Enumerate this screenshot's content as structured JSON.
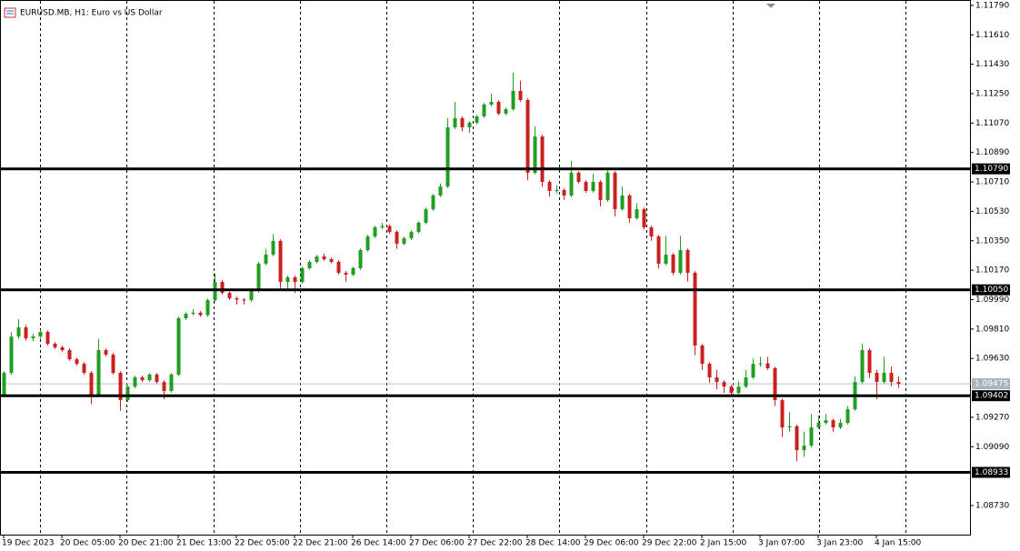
{
  "chart_data": {
    "type": "candlestick",
    "title": "EURUSD.MB, H1:  Euro vs US Dollar",
    "up_color": "#1f9e1f",
    "down_color": "#cc1f1f",
    "ylim": [
      1.08552,
      1.11823
    ],
    "yticks": [
      {
        "value": 1.1179,
        "label": "1.11790"
      },
      {
        "value": 1.1161,
        "label": "1.11610"
      },
      {
        "value": 1.1143,
        "label": "1.11430"
      },
      {
        "value": 1.1125,
        "label": "1.11250"
      },
      {
        "value": 1.1107,
        "label": "1.11070"
      },
      {
        "value": 1.1089,
        "label": "1.10890"
      },
      {
        "value": 1.1071,
        "label": "1.10710"
      },
      {
        "value": 1.1053,
        "label": "1.10530"
      },
      {
        "value": 1.1035,
        "label": "1.10350"
      },
      {
        "value": 1.1017,
        "label": "1.10170"
      },
      {
        "value": 1.0999,
        "label": "1.09990"
      },
      {
        "value": 1.0981,
        "label": "1.09810"
      },
      {
        "value": 1.0963,
        "label": "1.09630"
      },
      {
        "value": 1.0927,
        "label": "1.09270"
      },
      {
        "value": 1.0909,
        "label": "1.09090"
      },
      {
        "value": 1.0873,
        "label": "1.08730"
      }
    ],
    "x_labels": [
      "19 Dec 2023",
      "20 Dec 05:00",
      "20 Dec 21:00",
      "21 Dec 13:00",
      "22 Dec 05:00",
      "22 Dec 21:00",
      "26 Dec 14:00",
      "27 Dec 06:00",
      "27 Dec 22:00",
      "28 Dec 14:00",
      "29 Dec 06:00",
      "29 Dec 22:00",
      "2 Jan 15:00",
      "3 Jan 07:00",
      "3 Jan 23:00",
      "4 Jan 15:00"
    ],
    "levels": [
      {
        "value": 1.1079,
        "label": "1.10790"
      },
      {
        "value": 1.1005,
        "label": "1.10050"
      },
      {
        "value": 1.09402,
        "label": "1.09402"
      },
      {
        "value": 1.08933,
        "label": "1.08933"
      }
    ],
    "bid": {
      "value": 1.09475,
      "label": "1.09475"
    },
    "ohlc": [
      [
        1.09403,
        1.09552,
        1.09393,
        1.09542
      ],
      [
        1.09542,
        1.0979,
        1.0953,
        1.09764
      ],
      [
        1.09764,
        1.0987,
        1.0975,
        1.0982
      ],
      [
        1.0982,
        1.09835,
        1.0974,
        1.09753
      ],
      [
        1.09753,
        1.0978,
        1.09735,
        1.09764
      ],
      [
        1.09764,
        1.09805,
        1.0975,
        1.09792
      ],
      [
        1.09792,
        1.09802,
        1.0971,
        1.0972
      ],
      [
        1.0972,
        1.0973,
        1.09688,
        1.09698
      ],
      [
        1.09698,
        1.09708,
        1.09671,
        1.09681
      ],
      [
        1.09681,
        1.09691,
        1.09615,
        1.09625
      ],
      [
        1.09625,
        1.09635,
        1.09587,
        1.09597
      ],
      [
        1.09597,
        1.09607,
        1.09532,
        1.09542
      ],
      [
        1.09542,
        1.09552,
        1.0935,
        1.09403
      ],
      [
        1.09403,
        1.0975,
        1.09393,
        1.09681
      ],
      [
        1.09681,
        1.09691,
        1.09643,
        1.09653
      ],
      [
        1.09653,
        1.09663,
        1.09532,
        1.09542
      ],
      [
        1.09542,
        1.09552,
        1.0931,
        1.09375
      ],
      [
        1.09375,
        1.09468,
        1.09365,
        1.09458
      ],
      [
        1.09458,
        1.09524,
        1.09448,
        1.09514
      ],
      [
        1.09514,
        1.09524,
        1.09487,
        1.09497
      ],
      [
        1.09497,
        1.09541,
        1.09487,
        1.09531
      ],
      [
        1.09531,
        1.09541,
        1.09476,
        1.09486
      ],
      [
        1.09486,
        1.09496,
        1.0938,
        1.09431
      ],
      [
        1.09431,
        1.09541,
        1.09421,
        1.09531
      ],
      [
        1.09531,
        1.09886,
        1.09521,
        1.09876
      ],
      [
        1.09876,
        1.09913,
        1.09866,
        1.09903
      ],
      [
        1.09903,
        1.0993,
        1.09893,
        1.0991
      ],
      [
        1.0991,
        1.0992,
        1.09885,
        1.09895
      ],
      [
        1.09895,
        1.09997,
        1.09885,
        1.09987
      ],
      [
        1.09987,
        1.1015,
        1.09977,
        1.10098
      ],
      [
        1.10098,
        1.10108,
        1.10021,
        1.10031
      ],
      [
        1.10031,
        1.10041,
        1.09988,
        1.09998
      ],
      [
        1.09998,
        1.10008,
        1.0996,
        1.0999
      ],
      [
        1.0999,
        1.1,
        1.0996,
        1.09987
      ],
      [
        1.09987,
        1.10053,
        1.09977,
        1.10043
      ],
      [
        1.10043,
        1.1022,
        1.10033,
        1.1021
      ],
      [
        1.1021,
        1.103,
        1.102,
        1.10265
      ],
      [
        1.10265,
        1.1039,
        1.10255,
        1.10349
      ],
      [
        1.10349,
        1.10359,
        1.1006,
        1.10098
      ],
      [
        1.10098,
        1.10136,
        1.1004,
        1.10126
      ],
      [
        1.10126,
        1.10136,
        1.1003,
        1.10098
      ],
      [
        1.10098,
        1.10192,
        1.10088,
        1.10182
      ],
      [
        1.10182,
        1.10231,
        1.10172,
        1.10221
      ],
      [
        1.10221,
        1.10264,
        1.10211,
        1.10254
      ],
      [
        1.10254,
        1.1027,
        1.10227,
        1.10237
      ],
      [
        1.10237,
        1.10247,
        1.10211,
        1.10221
      ],
      [
        1.10221,
        1.10231,
        1.10144,
        1.10154
      ],
      [
        1.10154,
        1.10164,
        1.101,
        1.10143
      ],
      [
        1.10143,
        1.10192,
        1.10133,
        1.10182
      ],
      [
        1.10182,
        1.10303,
        1.10172,
        1.10293
      ],
      [
        1.10293,
        1.10386,
        1.10283,
        1.10376
      ],
      [
        1.10376,
        1.10442,
        1.10366,
        1.10432
      ],
      [
        1.10432,
        1.1046,
        1.10422,
        1.1044
      ],
      [
        1.1044,
        1.1045,
        1.10394,
        1.10404
      ],
      [
        1.10404,
        1.10414,
        1.103,
        1.10332
      ],
      [
        1.10332,
        1.10375,
        1.10322,
        1.10365
      ],
      [
        1.10365,
        1.10414,
        1.10355,
        1.10404
      ],
      [
        1.10404,
        1.1047,
        1.10394,
        1.1046
      ],
      [
        1.1046,
        1.10553,
        1.1045,
        1.10543
      ],
      [
        1.10543,
        1.10637,
        1.10533,
        1.10627
      ],
      [
        1.10627,
        1.107,
        1.10617,
        1.10682
      ],
      [
        1.10682,
        1.111,
        1.10672,
        1.11044
      ],
      [
        1.11044,
        1.112,
        1.11034,
        1.111
      ],
      [
        1.111,
        1.1111,
        1.1102,
        1.11044
      ],
      [
        1.11044,
        1.11082,
        1.1101,
        1.11072
      ],
      [
        1.11072,
        1.11121,
        1.11062,
        1.11111
      ],
      [
        1.11111,
        1.11193,
        1.11101,
        1.11183
      ],
      [
        1.11183,
        1.1125,
        1.11173,
        1.112
      ],
      [
        1.112,
        1.1121,
        1.11118,
        1.11128
      ],
      [
        1.11128,
        1.11165,
        1.11118,
        1.11155
      ],
      [
        1.11155,
        1.1138,
        1.11145,
        1.11267
      ],
      [
        1.11267,
        1.1133,
        1.11201,
        1.11211
      ],
      [
        1.11211,
        1.11221,
        1.1072,
        1.10766
      ],
      [
        1.10766,
        1.1105,
        1.10756,
        1.10988
      ],
      [
        1.10988,
        1.10998,
        1.1068,
        1.1071
      ],
      [
        1.1071,
        1.1072,
        1.1062,
        1.10655
      ],
      [
        1.10655,
        1.1069,
        1.1064,
        1.1066
      ],
      [
        1.1066,
        1.1067,
        1.106,
        1.10627
      ],
      [
        1.10627,
        1.1084,
        1.10617,
        1.10766
      ],
      [
        1.10766,
        1.10776,
        1.107,
        1.1071
      ],
      [
        1.1071,
        1.1072,
        1.10645,
        1.10655
      ],
      [
        1.10655,
        1.1076,
        1.10645,
        1.1071
      ],
      [
        1.1071,
        1.1072,
        1.1056,
        1.10599
      ],
      [
        1.10599,
        1.108,
        1.10589,
        1.10766
      ],
      [
        1.10766,
        1.10776,
        1.105,
        1.10543
      ],
      [
        1.10543,
        1.1068,
        1.10533,
        1.10627
      ],
      [
        1.10627,
        1.10637,
        1.1046,
        1.10488
      ],
      [
        1.10488,
        1.1058,
        1.10478,
        1.10543
      ],
      [
        1.10543,
        1.10553,
        1.1042,
        1.10432
      ],
      [
        1.10432,
        1.10442,
        1.1035,
        1.10376
      ],
      [
        1.10376,
        1.10386,
        1.1018,
        1.1021
      ],
      [
        1.1021,
        1.1038,
        1.102,
        1.10265
      ],
      [
        1.10265,
        1.10275,
        1.1014,
        1.10154
      ],
      [
        1.10154,
        1.1038,
        1.10144,
        1.10293
      ],
      [
        1.10293,
        1.10303,
        1.101,
        1.10154
      ],
      [
        1.10154,
        1.10164,
        1.0965,
        1.09709
      ],
      [
        1.09709,
        1.09719,
        1.0956,
        1.09597
      ],
      [
        1.09597,
        1.09607,
        1.0948,
        1.09514
      ],
      [
        1.09514,
        1.0956,
        1.0944,
        1.09486
      ],
      [
        1.09486,
        1.09496,
        1.0942,
        1.09458
      ],
      [
        1.09458,
        1.09468,
        1.094,
        1.09419
      ],
      [
        1.09419,
        1.0949,
        1.09409,
        1.09458
      ],
      [
        1.09458,
        1.0956,
        1.09448,
        1.09514
      ],
      [
        1.09514,
        1.0963,
        1.09504,
        1.09597
      ],
      [
        1.09597,
        1.0964,
        1.0958,
        1.096
      ],
      [
        1.096,
        1.0964,
        1.0956,
        1.0957
      ],
      [
        1.0957,
        1.0958,
        1.0934,
        1.09375
      ],
      [
        1.09375,
        1.09385,
        1.0915,
        1.09208
      ],
      [
        1.09208,
        1.093,
        1.0918,
        1.09215
      ],
      [
        1.09215,
        1.09225,
        1.09,
        1.09069
      ],
      [
        1.09069,
        1.0918,
        1.0903,
        1.09097
      ],
      [
        1.09097,
        1.0929,
        1.09087,
        1.09208
      ],
      [
        1.09208,
        1.0928,
        1.09198,
        1.09236
      ],
      [
        1.09236,
        1.0929,
        1.09226,
        1.09252
      ],
      [
        1.09252,
        1.09262,
        1.0918,
        1.09208
      ],
      [
        1.09208,
        1.0926,
        1.09198,
        1.09236
      ],
      [
        1.09236,
        1.0934,
        1.09226,
        1.09319
      ],
      [
        1.09319,
        1.0952,
        1.09309,
        1.09486
      ],
      [
        1.09486,
        1.0972,
        1.09476,
        1.09681
      ],
      [
        1.09681,
        1.09691,
        1.0951,
        1.09542
      ],
      [
        1.09542,
        1.0956,
        1.0938,
        1.09486
      ],
      [
        1.09486,
        1.0964,
        1.09476,
        1.09542
      ],
      [
        1.09542,
        1.0958,
        1.0946,
        1.09486
      ],
      [
        1.09486,
        1.0952,
        1.0945,
        1.09475
      ]
    ]
  }
}
